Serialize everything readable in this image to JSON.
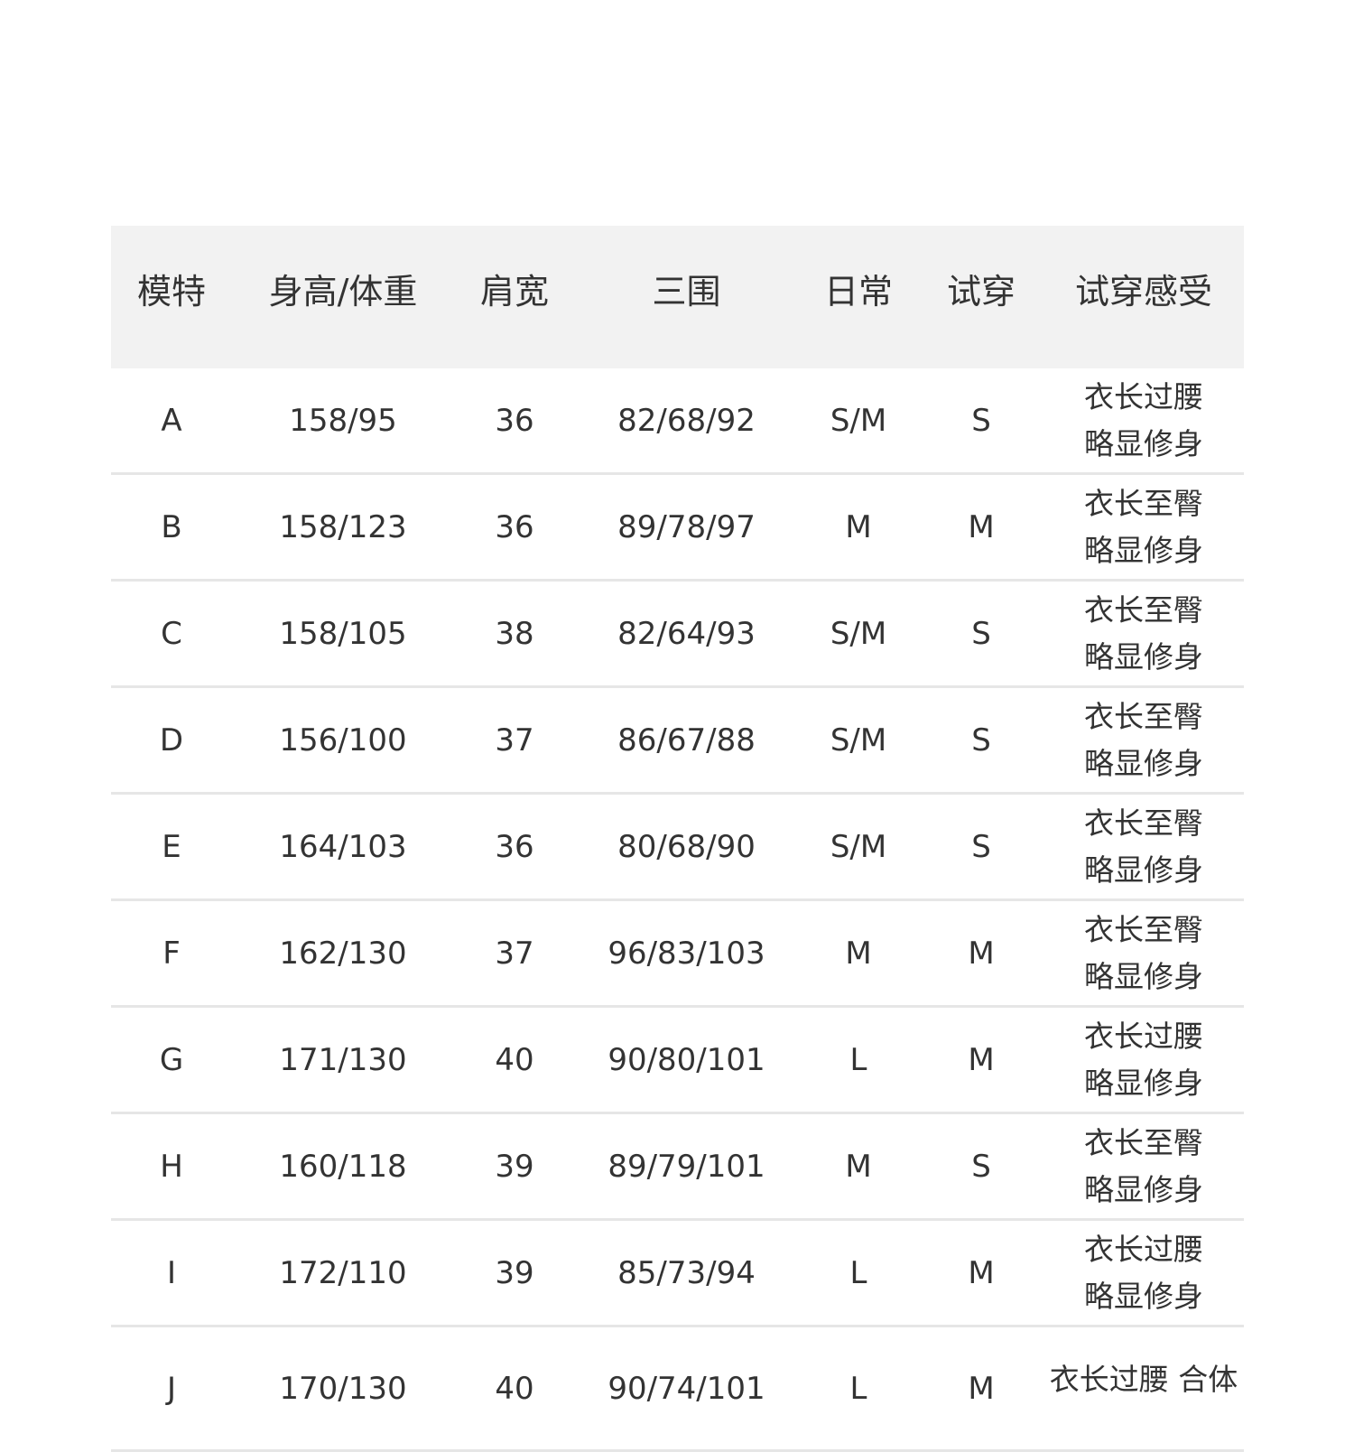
{
  "headers": [
    "模特",
    "身高/体重",
    "肩宽",
    "三围",
    "日常",
    "试穿",
    "试穿感受"
  ],
  "rows": [
    {
      "model": "A",
      "height_weight": "158/95",
      "shoulder": "36",
      "measurements": "82/68/92",
      "daily": "S/M",
      "tried": "S",
      "feel": [
        "衣长过腰",
        "略显修身"
      ]
    },
    {
      "model": "B",
      "height_weight": "158/123",
      "shoulder": "36",
      "measurements": "89/78/97",
      "daily": "M",
      "tried": "M",
      "feel": [
        "衣长至臀",
        "略显修身"
      ]
    },
    {
      "model": "C",
      "height_weight": "158/105",
      "shoulder": "38",
      "measurements": "82/64/93",
      "daily": "S/M",
      "tried": "S",
      "feel": [
        "衣长至臀",
        "略显修身"
      ]
    },
    {
      "model": "D",
      "height_weight": "156/100",
      "shoulder": "37",
      "measurements": "86/67/88",
      "daily": "S/M",
      "tried": "S",
      "feel": [
        "衣长至臀",
        "略显修身"
      ]
    },
    {
      "model": "E",
      "height_weight": "164/103",
      "shoulder": "36",
      "measurements": "80/68/90",
      "daily": "S/M",
      "tried": "S",
      "feel": [
        "衣长至臀",
        "略显修身"
      ]
    },
    {
      "model": "F",
      "height_weight": "162/130",
      "shoulder": "37",
      "measurements": "96/83/103",
      "daily": "M",
      "tried": "M",
      "feel": [
        "衣长至臀",
        "略显修身"
      ]
    },
    {
      "model": "G",
      "height_weight": "171/130",
      "shoulder": "40",
      "measurements": "90/80/101",
      "daily": "L",
      "tried": "M",
      "feel": [
        "衣长过腰",
        "略显修身"
      ]
    },
    {
      "model": "H",
      "height_weight": "160/118",
      "shoulder": "39",
      "measurements": "89/79/101",
      "daily": "M",
      "tried": "S",
      "feel": [
        "衣长至臀",
        "略显修身"
      ]
    },
    {
      "model": "I",
      "height_weight": "172/110",
      "shoulder": "39",
      "measurements": "85/73/94",
      "daily": "L",
      "tried": "M",
      "feel": [
        "衣长过腰",
        "略显修身"
      ]
    },
    {
      "model": "J",
      "height_weight": "170/130",
      "shoulder": "40",
      "measurements": "90/74/101",
      "daily": "L",
      "tried": "M",
      "feel": [
        "衣长过腰 合体"
      ]
    }
  ],
  "colors": {
    "header_bg": "#f2f2f2",
    "divider": "#e6e6e6",
    "text": "#333333"
  }
}
